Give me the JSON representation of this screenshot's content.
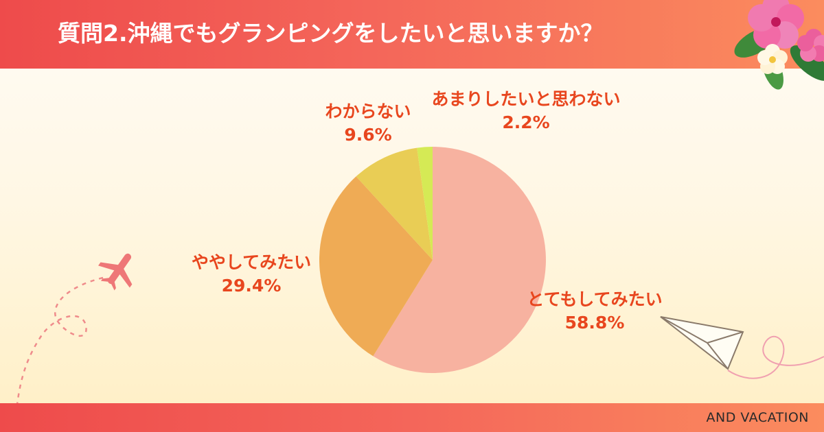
{
  "header": {
    "title": "質問2.沖縄でもグランピングをしたいと思いますか？"
  },
  "footer": {
    "brand": "AND VACATION"
  },
  "colors": {
    "header_start": "#ee4b4b",
    "header_end": "#fb8c5e",
    "label_text": "#e8461e"
  },
  "chart_data": {
    "type": "pie",
    "title": "質問2.沖縄でもグランピングをしたいと思いますか？",
    "slices": [
      {
        "label": "とてもしてみたい",
        "value": 58.8,
        "display": "58.8%",
        "color": "#f7b2a0"
      },
      {
        "label": "ややしてみたい",
        "value": 29.4,
        "display": "29.4%",
        "color": "#efab55"
      },
      {
        "label": "わからない",
        "value": 9.6,
        "display": "9.6%",
        "color": "#e9cd55"
      },
      {
        "label": "あまりしたいと思わない",
        "value": 2.2,
        "display": "2.2%",
        "color": "#d5ea55"
      }
    ],
    "start": "12 o'clock",
    "direction": "clockwise",
    "legend": "none"
  },
  "decorations": {
    "top_right": "hibiscus-flower-icon",
    "left": "airplane-icon",
    "right": "paper-plane-icon"
  }
}
